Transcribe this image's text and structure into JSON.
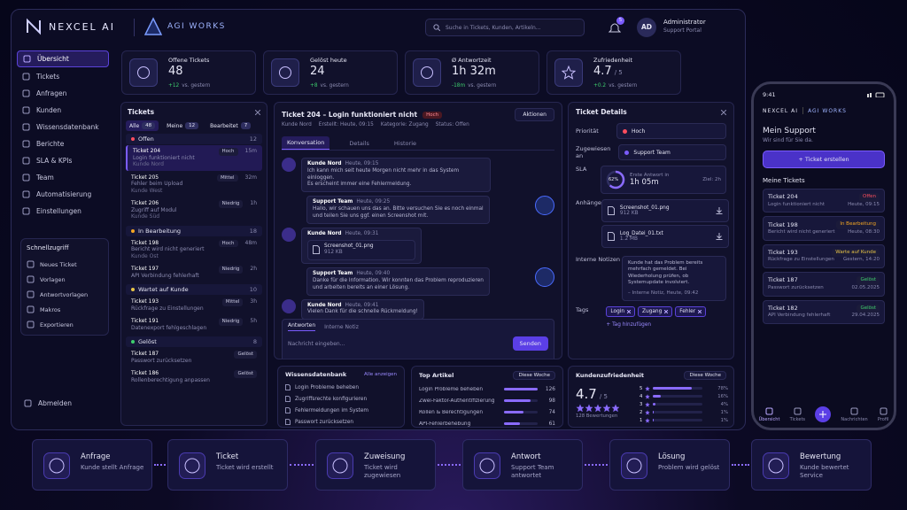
{
  "header": {
    "logo": "NEXCEL AI",
    "partner": "AGI WORKS",
    "search": "Suche in Tickets, Kunden, Artikeln...",
    "notifications": 5,
    "user": {
      "initials": "AD",
      "name": "Administrator",
      "role": "Support Portal"
    }
  },
  "sidebar": {
    "nav": [
      "Übersicht",
      "Tickets",
      "Anfragen",
      "Kunden",
      "Wissensdatenbank",
      "Berichte",
      "SLA & KPIs",
      "Team",
      "Automatisierung",
      "Einstellungen"
    ],
    "quick_title": "Schnellzugriff",
    "quick": [
      "Neues Ticket",
      "Vorlagen",
      "Antwortvorlagen",
      "Makros",
      "Exportieren"
    ],
    "logout": "Abmelden"
  },
  "kpis": [
    {
      "label": "Offene Tickets",
      "value": 48,
      "delta": "+12",
      "note": "vs. gestern"
    },
    {
      "label": "Gelöst heute",
      "value": 24,
      "delta": "+8",
      "note": "vs. gestern"
    },
    {
      "label": "Ø Antwortzeit",
      "value": "1h 32m",
      "delta": "-18m",
      "note": "vs. gestern"
    },
    {
      "label": "Zufriedenheit",
      "value": 4.7,
      "suffix": "/ 5",
      "delta": "+0.2",
      "note": "vs. gestern"
    }
  ],
  "tickets": {
    "title": "Tickets",
    "tabs": [
      {
        "label": "Alle",
        "count": 48
      },
      {
        "label": "Meine",
        "count": 12
      },
      {
        "label": "Bearbeitet",
        "count": 7
      }
    ],
    "groups": [
      {
        "name": "Offen",
        "count": 12,
        "color": "#ff4d5e",
        "items": [
          {
            "id": "Ticket 204",
            "subject": "Login funktioniert nicht",
            "customer": "Kunde Nord",
            "priority": "Hoch",
            "color": "#ff4d5e",
            "age": "15m"
          },
          {
            "id": "Ticket 205",
            "subject": "Fehler beim Upload",
            "customer": "Kunde West",
            "priority": "Mittel",
            "color": "#f5a623",
            "age": "32m"
          },
          {
            "id": "Ticket 206",
            "subject": "Zugriff auf Modul",
            "customer": "Kunde Süd",
            "priority": "Niedrig",
            "color": "#3ecf6e",
            "age": "1h"
          }
        ]
      },
      {
        "name": "In Bearbeitung",
        "count": 18,
        "color": "#f5a623",
        "items": [
          {
            "id": "Ticket 198",
            "subject": "Bericht wird nicht generiert",
            "customer": "Kunde Ost",
            "priority": "Hoch",
            "color": "#ff4d5e",
            "age": "48m"
          },
          {
            "id": "Ticket 197",
            "subject": "API Verbindung fehlerhaft",
            "priority": "Niedrig",
            "color": "#3ecf6e",
            "age": "2h"
          }
        ]
      },
      {
        "name": "Wartet auf Kunde",
        "count": 10,
        "color": "#e8c547",
        "items": [
          {
            "id": "Ticket 193",
            "subject": "Rückfrage zu Einstellungen",
            "priority": "Mittel",
            "color": "#f5a623",
            "age": "3h"
          },
          {
            "id": "Ticket 191",
            "subject": "Datenexport fehlgeschlagen",
            "priority": "Niedrig",
            "color": "#3ecf6e",
            "age": "5h"
          }
        ]
      },
      {
        "name": "Gelöst",
        "count": 8,
        "color": "#3ecf6e",
        "items": [
          {
            "id": "Ticket 187",
            "subject": "Passwort zurücksetzen",
            "priority": "Gelöst",
            "color": "#3ecf6e"
          },
          {
            "id": "Ticket 186",
            "subject": "Rollenberechtigung anpassen",
            "priority": "Gelöst",
            "color": "#3ecf6e"
          }
        ]
      }
    ]
  },
  "conversation": {
    "title": "Ticket 204 – Login funktioniert nicht",
    "priority": "Hoch",
    "meta": [
      "Kunde Nord",
      "Erstellt: Heute, 09:15",
      "Kategorie: Zugang",
      "Status: Offen"
    ],
    "actions": "Aktionen",
    "tabs": [
      "Konversation",
      "Details",
      "Historie"
    ],
    "messages": [
      {
        "author": "Kunde Nord",
        "time": "Heute, 09:15",
        "text": [
          "Ich kann mich seit heute Morgen nicht mehr in das System einloggen.",
          "Es erscheint immer eine Fehlermeldung."
        ]
      },
      {
        "author": "Support Team",
        "time": "Heute, 09:25",
        "text": [
          "Hallo, wir schauen uns das an. Bitte versuchen Sie es noch einmal",
          "und teilen Sie uns ggf. einen Screenshot mit."
        ]
      },
      {
        "author": "Kunde Nord",
        "time": "Heute, 09:31",
        "file": "Screenshot_01.png",
        "size": "912 KB"
      },
      {
        "author": "Support Team",
        "time": "Heute, 09:40",
        "text": [
          "Danke für die Information. Wir konnten das Problem reproduzieren",
          "und arbeiten bereits an einer Lösung."
        ]
      },
      {
        "author": "Kunde Nord",
        "time": "Heute, 09:41",
        "text": [
          "Vielen Dank für die schnelle Rückmeldung!"
        ]
      }
    ],
    "reply": {
      "tabs": [
        "Antworten",
        "Interne Notiz"
      ],
      "placeholder": "Nachricht eingeben...",
      "send": "Senden"
    }
  },
  "details": {
    "title": "Ticket Details",
    "rows": [
      {
        "label": "Priorität",
        "value": "Hoch",
        "color": "#ff4d5e"
      },
      {
        "label": "Zugewiesen an",
        "value": "Support Team",
        "color": "#7b5cff"
      }
    ],
    "sla": {
      "label": "SLA",
      "percent": {
        "value": 62,
        "label": "62%"
      },
      "caption": "Erste Antwort in",
      "time": "1h 05m",
      "target": "Ziel: 2h"
    },
    "attachments": {
      "label": "Anhänge",
      "files": [
        {
          "name": "Screenshot_01.png",
          "size": "912 KB"
        },
        {
          "name": "Log_Datei_01.txt",
          "size": "1.2 MB"
        }
      ]
    },
    "notes": {
      "label": "Interne Notizen",
      "text": "Kunde hat das Problem bereits mehrfach gemeldet. Bei Wiederholung prüfen, ob Systemupdate involviert.",
      "author": "– Interne Notiz, Heute, 09:42"
    },
    "tags": {
      "label": "Tags",
      "items": [
        "Login",
        "Zugang",
        "Fehler"
      ],
      "add": "+ Tag hinzufügen"
    }
  },
  "knowledge": {
    "title": "Wissensdatenbank",
    "link": "Alle anzeigen",
    "articles": [
      "Login Probleme beheben",
      "Zugriffsrechte konfigurieren",
      "Fehlermeldungen im System",
      "Passwort zurücksetzen"
    ]
  },
  "top_articles": {
    "title": "Top Artikel",
    "period": "Diese Woche",
    "items": [
      {
        "name": "Login Probleme beheben",
        "count": 126
      },
      {
        "name": "Zwei-Faktor-Authentifizierung",
        "count": 98
      },
      {
        "name": "Rollen & Berechtigungen",
        "count": 74
      },
      {
        "name": "API-Fehlerbehebung",
        "count": 61
      }
    ]
  },
  "satisfaction": {
    "title": "Kundenzufriedenheit",
    "period": "Diese Woche",
    "score": 4.7,
    "scale": "/ 5",
    "reviews": "128 Bewertungen",
    "distribution": [
      {
        "stars": 5,
        "percent": 78,
        "label": "78%"
      },
      {
        "stars": 4,
        "percent": 16,
        "label": "16%"
      },
      {
        "stars": 3,
        "percent": 4,
        "label": "4%"
      },
      {
        "stars": 2,
        "percent": 1,
        "label": "1%"
      },
      {
        "stars": 1,
        "percent": 1,
        "label": "1%"
      }
    ]
  },
  "phone": {
    "time": "9:41",
    "logo": "NEXCEL AI",
    "partner": "AGI WORKS",
    "title": "Mein Support",
    "subtitle": "Wir sind für Sie da.",
    "cta": "+ Ticket erstellen",
    "section": "Meine Tickets",
    "tickets": [
      {
        "id": "Ticket 204",
        "subject": "Login funktioniert nicht",
        "status": "Offen",
        "color": "#ff4d5e",
        "date": "Heute, 09:15"
      },
      {
        "id": "Ticket 198",
        "subject": "Bericht wird nicht generiert",
        "status": "In Bearbeitung",
        "color": "#f5a623",
        "date": "Heute, 08:30"
      },
      {
        "id": "Ticket 193",
        "subject": "Rückfrage zu Einstellungen",
        "status": "Warte auf Kunde",
        "color": "#e8c547",
        "date": "Gestern, 14:20"
      },
      {
        "id": "Ticket 187",
        "subject": "Passwort zurücksetzen",
        "status": "Gelöst",
        "color": "#3ecf6e",
        "date": "02.05.2025"
      },
      {
        "id": "Ticket 182",
        "subject": "API Verbindung fehlerhaft",
        "status": "Gelöst",
        "color": "#3ecf6e",
        "date": "29.04.2025"
      }
    ],
    "tabs": [
      "Übersicht",
      "Tickets",
      "Nachrichten",
      "Profil"
    ]
  },
  "flow": [
    {
      "title": "Anfrage",
      "text": "Kunde stellt Anfrage"
    },
    {
      "title": "Ticket",
      "text": "Ticket wird erstellt"
    },
    {
      "title": "Zuweisung",
      "text": "Ticket wird zugewiesen"
    },
    {
      "title": "Antwort",
      "text": "Support Team antwortet"
    },
    {
      "title": "Lösung",
      "text": "Problem wird gelöst"
    },
    {
      "title": "Bewertung",
      "text": "Kunde bewertet Service"
    }
  ]
}
